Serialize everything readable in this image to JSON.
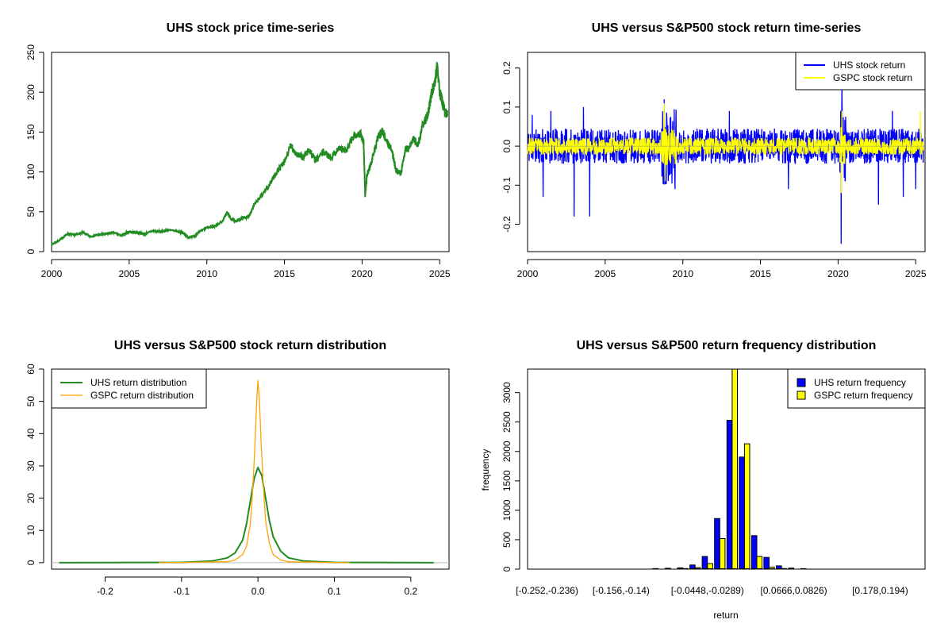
{
  "chart_data": [
    {
      "type": "line",
      "title": "UHS stock price time-series",
      "xlabel": "",
      "ylabel": "",
      "xlim": [
        2000,
        2025.6
      ],
      "ylim": [
        0,
        250
      ],
      "x_ticks": [
        "2000",
        "2005",
        "2010",
        "2015",
        "2020",
        "2025"
      ],
      "y_ticks": [
        "0",
        "50",
        "100",
        "150",
        "200",
        "250"
      ],
      "color": "#228b22",
      "series": [
        {
          "x": [
            2000.0,
            2000.5,
            2001.0,
            2001.5,
            2002.0,
            2002.5,
            2003.0,
            2003.5,
            2004.0,
            2004.5,
            2005.0,
            2005.5,
            2006.0,
            2006.5,
            2007.0,
            2007.5,
            2008.0,
            2008.5,
            2008.8,
            2009.2,
            2009.5,
            2010.0,
            2010.5,
            2011.0,
            2011.3,
            2011.6,
            2011.9,
            2012.3,
            2012.7,
            2013.0,
            2013.5,
            2014.0,
            2014.5,
            2015.0,
            2015.4,
            2015.8,
            2016.2,
            2016.6,
            2017.0,
            2017.5,
            2018.0,
            2018.5,
            2019.0,
            2019.5,
            2019.9,
            2020.1,
            2020.2,
            2020.3,
            2020.6,
            2021.0,
            2021.3,
            2021.6,
            2021.9,
            2022.2,
            2022.5,
            2022.8,
            2023.0,
            2023.3,
            2023.6,
            2023.9,
            2024.2,
            2024.5,
            2024.7,
            2024.85,
            2025.0,
            2025.2,
            2025.35,
            2025.5
          ],
          "y": [
            9,
            14,
            22,
            21,
            24,
            19,
            21,
            22,
            24,
            20,
            25,
            24,
            22,
            26,
            25,
            27,
            26,
            23,
            18,
            19,
            25,
            30,
            32,
            38,
            49,
            40,
            38,
            42,
            44,
            57,
            70,
            83,
            100,
            112,
            133,
            122,
            118,
            128,
            114,
            125,
            118,
            130,
            126,
            147,
            148,
            138,
            70,
            95,
            112,
            142,
            152,
            138,
            128,
            102,
            98,
            130,
            128,
            142,
            133,
            158,
            170,
            200,
            215,
            235,
            200,
            185,
            175,
            172
          ]
        }
      ]
    },
    {
      "type": "line",
      "title": "UHS versus S&P500 stock return time-series",
      "xlabel": "",
      "ylabel": "",
      "xlim": [
        2000,
        2025.6
      ],
      "ylim": [
        -0.27,
        0.24
      ],
      "x_ticks": [
        "2000",
        "2005",
        "2010",
        "2015",
        "2020",
        "2025"
      ],
      "y_ticks": [
        "-0.2",
        "-0.1",
        "0.0",
        "0.1",
        "0.2"
      ],
      "legend_position": "top-right",
      "series": [
        {
          "name": "UHS stock return",
          "color": "#0000ff",
          "spikes": [
            [
              2000.3,
              0.08
            ],
            [
              2001.0,
              -0.13
            ],
            [
              2001.5,
              0.09
            ],
            [
              2003.0,
              -0.18
            ],
            [
              2003.6,
              0.1
            ],
            [
              2004.0,
              -0.18
            ],
            [
              2008.8,
              0.12
            ],
            [
              2009.5,
              -0.11
            ],
            [
              2013.0,
              0.09
            ],
            [
              2016.8,
              -0.11
            ],
            [
              2020.2,
              -0.25
            ],
            [
              2020.25,
              0.15
            ],
            [
              2022.6,
              -0.15
            ],
            [
              2023.5,
              0.09
            ],
            [
              2024.2,
              -0.13
            ],
            [
              2025.0,
              -0.11
            ]
          ]
        },
        {
          "name": "GSPC stock return",
          "color": "#ffff00",
          "spikes": [
            [
              2008.8,
              0.11
            ],
            [
              2008.85,
              -0.09
            ],
            [
              2020.2,
              -0.12
            ],
            [
              2020.25,
              0.09
            ],
            [
              2025.3,
              0.09
            ]
          ]
        }
      ]
    },
    {
      "type": "line",
      "title": "UHS versus S&P500 stock return distribution",
      "xlabel": "",
      "ylabel": "",
      "xlim": [
        -0.27,
        0.25
      ],
      "ylim": [
        -2,
        60
      ],
      "x_ticks": [
        "-0.2",
        "-0.1",
        "0.0",
        "0.1",
        "0.2"
      ],
      "y_ticks": [
        "0",
        "10",
        "20",
        "30",
        "40",
        "50",
        "60"
      ],
      "legend_position": "top-left",
      "series": [
        {
          "name": "UHS return distribution",
          "color": "#228b22",
          "x": [
            -0.26,
            -0.1,
            -0.06,
            -0.04,
            -0.03,
            -0.02,
            -0.015,
            -0.01,
            -0.005,
            0.0,
            0.005,
            0.01,
            0.015,
            0.02,
            0.03,
            0.04,
            0.06,
            0.1,
            0.23
          ],
          "y": [
            0,
            0.1,
            0.5,
            1.5,
            3,
            7,
            12,
            19,
            26,
            29.5,
            27,
            20,
            13,
            8,
            3.5,
            1.5,
            0.5,
            0.1,
            0
          ]
        },
        {
          "name": "GSPC return distribution",
          "color": "#ffa500",
          "x": [
            -0.13,
            -0.04,
            -0.03,
            -0.02,
            -0.015,
            -0.01,
            -0.007,
            -0.004,
            -0.002,
            0.0,
            0.002,
            0.004,
            0.007,
            0.01,
            0.015,
            0.02,
            0.03,
            0.04,
            0.12
          ],
          "y": [
            0,
            0.3,
            0.8,
            2.5,
            5,
            12,
            22,
            36,
            48,
            56.5,
            50,
            38,
            24,
            13,
            6,
            2.5,
            0.8,
            0.3,
            0
          ]
        }
      ]
    },
    {
      "type": "bar",
      "title": "UHS versus S&P500 return frequency distribution",
      "xlabel": "return",
      "ylabel": "frequency",
      "ylim": [
        0,
        3400
      ],
      "y_ticks": [
        "0",
        "500",
        "1000",
        "1500",
        "2000",
        "2500",
        "3000"
      ],
      "legend_position": "top-right",
      "x_tick_labels": [
        "[-0.252,-0.236)",
        "[-0.156,-0.14)",
        "[-0.0448,-0.0289)",
        "[0.0666,0.0826)",
        "[0.178,0.194)"
      ],
      "x_tick_bins": [
        0,
        6,
        13,
        20,
        27
      ],
      "bin_count": 31,
      "series": [
        {
          "name": "UHS return frequency",
          "color": "#0000ff",
          "values": [
            1,
            0,
            1,
            2,
            0,
            1,
            3,
            4,
            6,
            10,
            15,
            22,
            70,
            215,
            860,
            2530,
            1905,
            570,
            200,
            55,
            18,
            8,
            4,
            3,
            2,
            1,
            1,
            0,
            0,
            0,
            1
          ]
        },
        {
          "name": "GSPC return frequency",
          "color": "#ffff00",
          "values": [
            0,
            0,
            0,
            0,
            0,
            0,
            1,
            1,
            2,
            3,
            5,
            10,
            25,
            95,
            520,
            3400,
            2130,
            215,
            35,
            10,
            3,
            1,
            1,
            0,
            0,
            0,
            0,
            0,
            0,
            0,
            0
          ]
        }
      ]
    }
  ]
}
